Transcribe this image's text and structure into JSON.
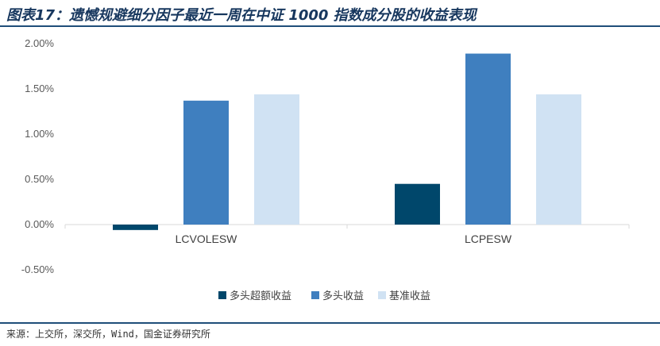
{
  "title": "图表17：遗憾规避细分因子最近一周在中证 1000 指数成分股的收益表现",
  "source": "来源：上交所，深交所，Wind，国金证券研究所",
  "colors": {
    "title": "#17375e",
    "rule": "#1f4e79",
    "axis": "#d9d9d9"
  },
  "chart_data": {
    "type": "bar",
    "categories": [
      "LCVOLESW",
      "LCPESW"
    ],
    "series": [
      {
        "name": "多头超额收益",
        "color": "#00476b",
        "values": [
          -0.06,
          0.45
        ]
      },
      {
        "name": "多头收益",
        "color": "#3f7fbf",
        "values": [
          1.37,
          1.89
        ]
      },
      {
        "name": "基准收益",
        "color": "#d0e2f3",
        "values": [
          1.44,
          1.44
        ]
      }
    ],
    "ylim": [
      -0.5,
      2.0
    ],
    "yticks": [
      "2.00%",
      "1.50%",
      "1.00%",
      "0.50%",
      "0.00%",
      "-0.50%"
    ],
    "ytick_values": [
      2.0,
      1.5,
      1.0,
      0.5,
      0.0,
      -0.5
    ],
    "legend_position": "bottom",
    "grid": false
  }
}
